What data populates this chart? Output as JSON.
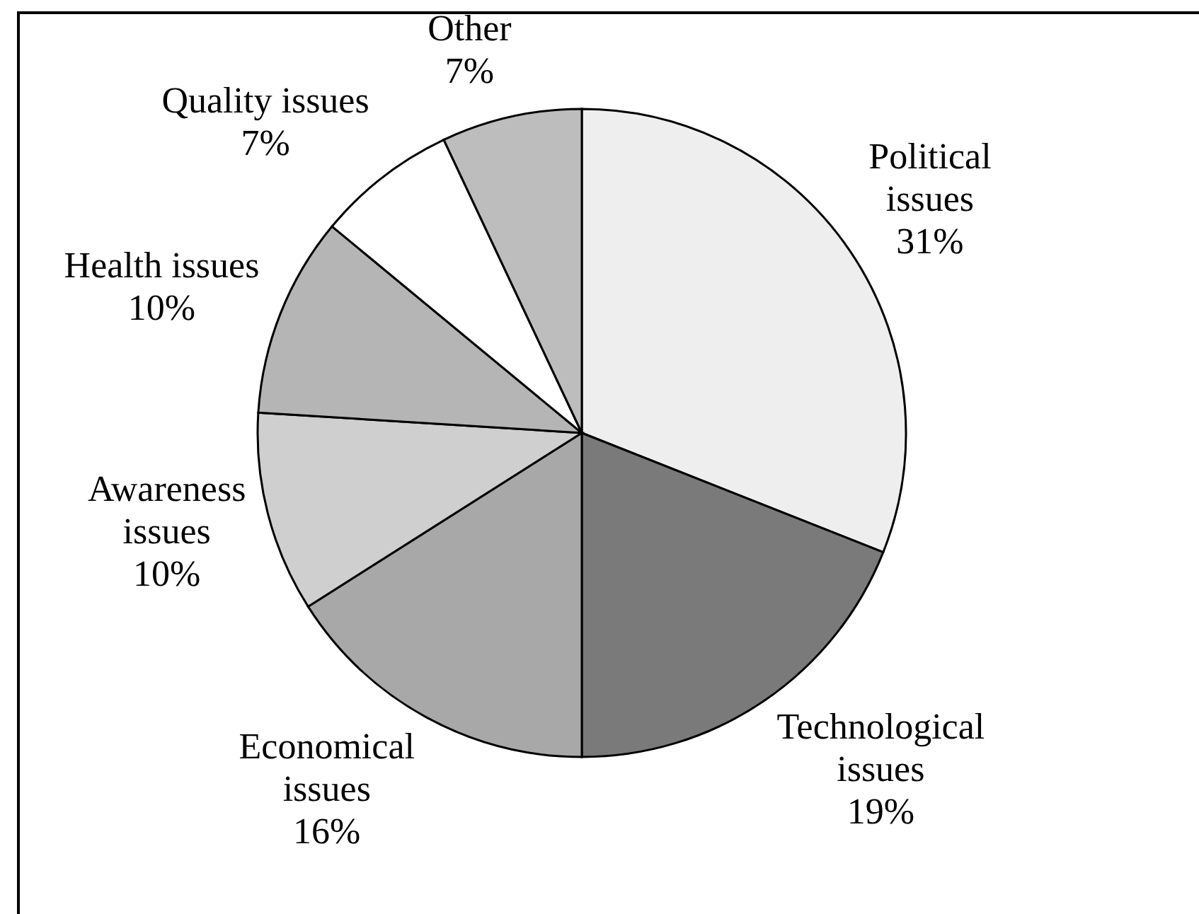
{
  "chart_data": {
    "type": "pie",
    "categories": [
      "Political issues",
      "Technological issues",
      "Economical issues",
      "Awareness issues",
      "Health issues",
      "Quality issues",
      "Other"
    ],
    "values": [
      31,
      19,
      16,
      10,
      10,
      7,
      7
    ],
    "colors": [
      "#eeeeee",
      "#7a7a7a",
      "#a8a8a8",
      "#cfcfcf",
      "#b5b5b5",
      "#ffffff",
      "#bdbdbd"
    ],
    "value_labels": [
      "31%",
      "19%",
      "16%",
      "10%",
      "10%",
      "7%",
      "7%"
    ]
  }
}
